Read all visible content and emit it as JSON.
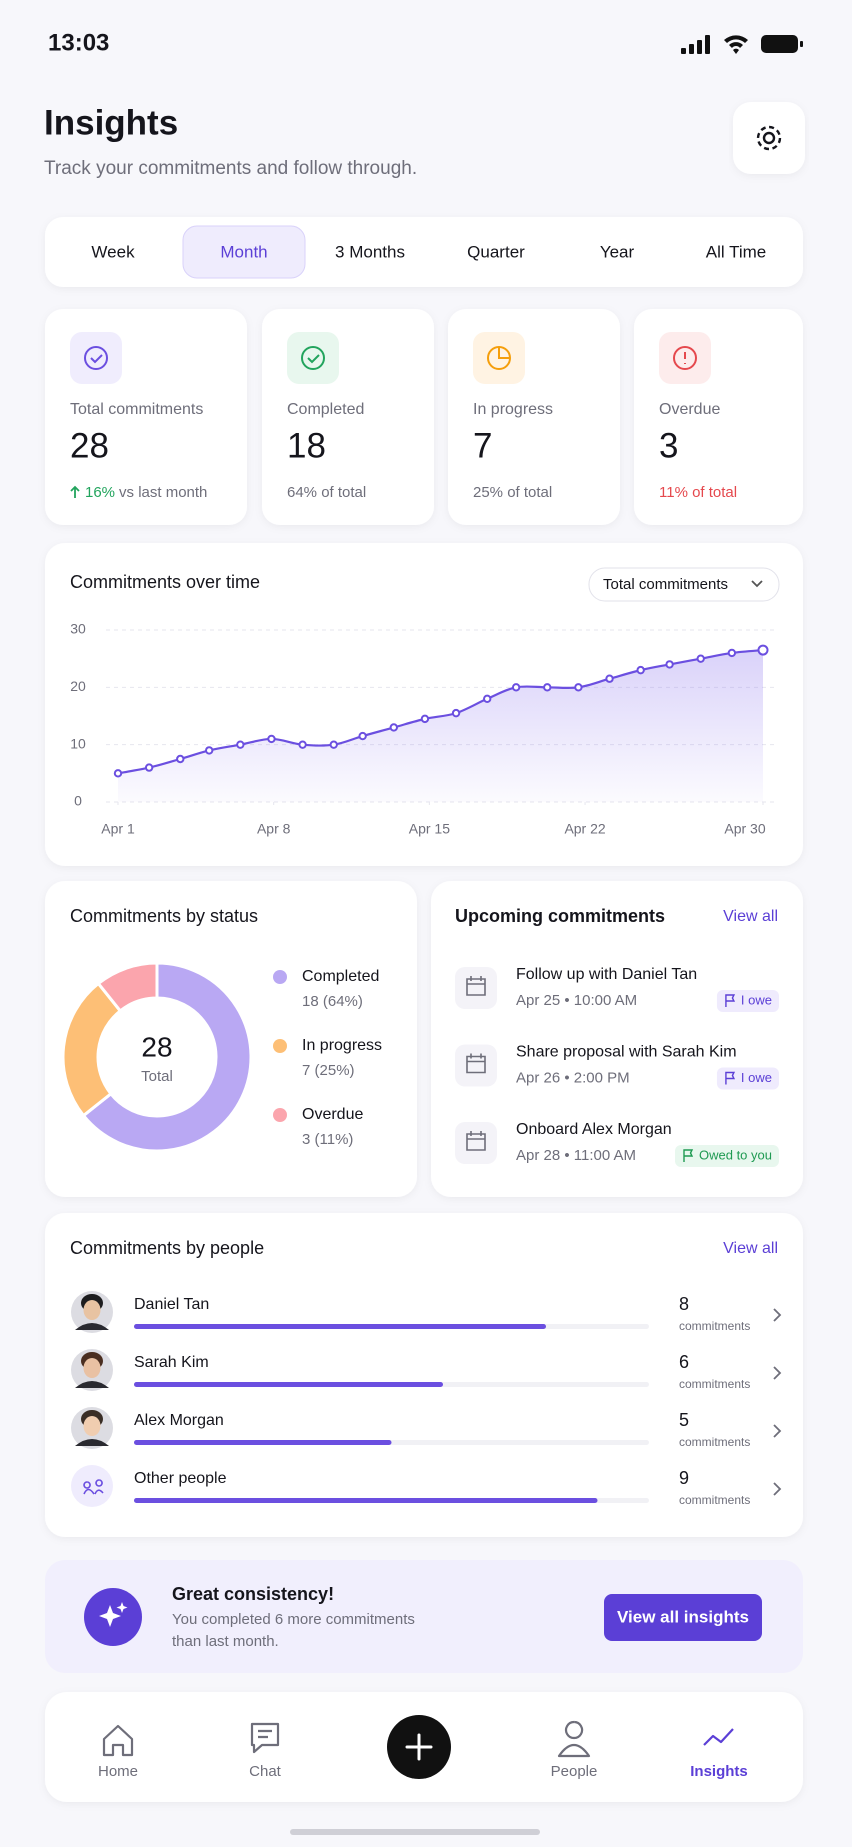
{
  "status_bar": {
    "time": "13:03"
  },
  "header": {
    "title": "Insights",
    "subtitle": "Track your commitments and follow through."
  },
  "tabs": {
    "items": [
      "Week",
      "Month",
      "3 Months",
      "Quarter",
      "Year",
      "All Time"
    ],
    "active": 1
  },
  "stats": [
    {
      "label": "Total commitments",
      "value": 28,
      "change": "16%",
      "note": "vs last month",
      "color": "#6b4fe0",
      "bg": "#f0edfd"
    },
    {
      "label": "Completed",
      "value": 18,
      "note": "64% of total",
      "color": "#22a45d",
      "bg": "#e8f7ee"
    },
    {
      "label": "In progress",
      "value": 7,
      "note": "25% of total",
      "color": "#f59e0b",
      "bg": "#fff3e3"
    },
    {
      "label": "Overdue",
      "value": 3,
      "note": "11% of total",
      "color": "#e5484d",
      "bg": "#fdecec",
      "note_color": "#e5484d"
    }
  ],
  "chart_data": {
    "type": "line",
    "title": "Commitments over time",
    "dropdown": "Total commitments",
    "color": "#6b4fe0",
    "x": [
      1,
      2.4,
      3.8,
      5.1,
      6.5,
      7.9,
      9.3,
      10.7,
      12,
      13.4,
      14.8,
      16.2,
      17.6,
      18.9,
      20.3,
      21.7,
      23.1,
      24.5,
      25.8,
      27.2,
      28.6,
      30
    ],
    "values": [
      5,
      6,
      7.5,
      9,
      10,
      11,
      10,
      10,
      11.5,
      13,
      14.5,
      15.5,
      18,
      20,
      20,
      20,
      21.5,
      23,
      24,
      25,
      26,
      26.5
    ],
    "xlim": [
      1,
      30
    ],
    "xticks": [
      {
        "value": 1,
        "label": "Apr 1"
      },
      {
        "value": 8,
        "label": "Apr 8"
      },
      {
        "value": 15,
        "label": "Apr 15"
      },
      {
        "value": 22,
        "label": "Apr 22"
      },
      {
        "value": 30,
        "label": "Apr 30"
      }
    ],
    "ylim": [
      0,
      30
    ],
    "yticks": [
      0,
      10,
      20,
      30
    ],
    "grid": true
  },
  "status_chart": {
    "type": "pie",
    "title": "Commitments by status",
    "total": 28,
    "total_label": "Total",
    "categories": [
      "Completed",
      "In progress",
      "Overdue"
    ],
    "values": [
      18,
      7,
      3
    ],
    "value_labels": [
      "18 (64%)",
      "7 (25%)",
      "3 (11%)"
    ],
    "colors": [
      "#b9a8f3",
      "#fdbf76",
      "#fba5ad"
    ]
  },
  "upcoming": {
    "title": "Upcoming commitments",
    "link": "View all",
    "items": [
      {
        "title": "Follow up with Daniel Tan",
        "time": "Apr 25 • 10:00 AM",
        "tag": "I owe",
        "tag_color": "#5b3fd6",
        "tag_bg": "#efebfd"
      },
      {
        "title": "Share proposal with Sarah Kim",
        "time": "Apr 26 • 2:00 PM",
        "tag": "I owe",
        "tag_color": "#5b3fd6",
        "tag_bg": "#efebfd"
      },
      {
        "title": "Onboard Alex Morgan",
        "time": "Apr 28 • 11:00 AM",
        "tag": "Owed to you",
        "tag_color": "#1f9a52",
        "tag_bg": "#e8f7ee"
      }
    ]
  },
  "people": {
    "title": "Commitments by people",
    "link": "View all",
    "unit": "commitments",
    "xlim": [
      0,
      10
    ],
    "color": "#6b4fe0",
    "items": [
      {
        "name": "Daniel Tan",
        "count": 8
      },
      {
        "name": "Sarah Kim",
        "count": 6
      },
      {
        "name": "Alex Morgan",
        "count": 5
      },
      {
        "name": "Other people",
        "count": 9
      }
    ]
  },
  "banner": {
    "title": "Great consistency!",
    "lines": [
      "You completed 6 more commitments",
      "than last month."
    ],
    "button": "View all insights"
  },
  "nav": {
    "items": [
      "Home",
      "Chat",
      "People",
      "Insights"
    ],
    "active": 3
  }
}
